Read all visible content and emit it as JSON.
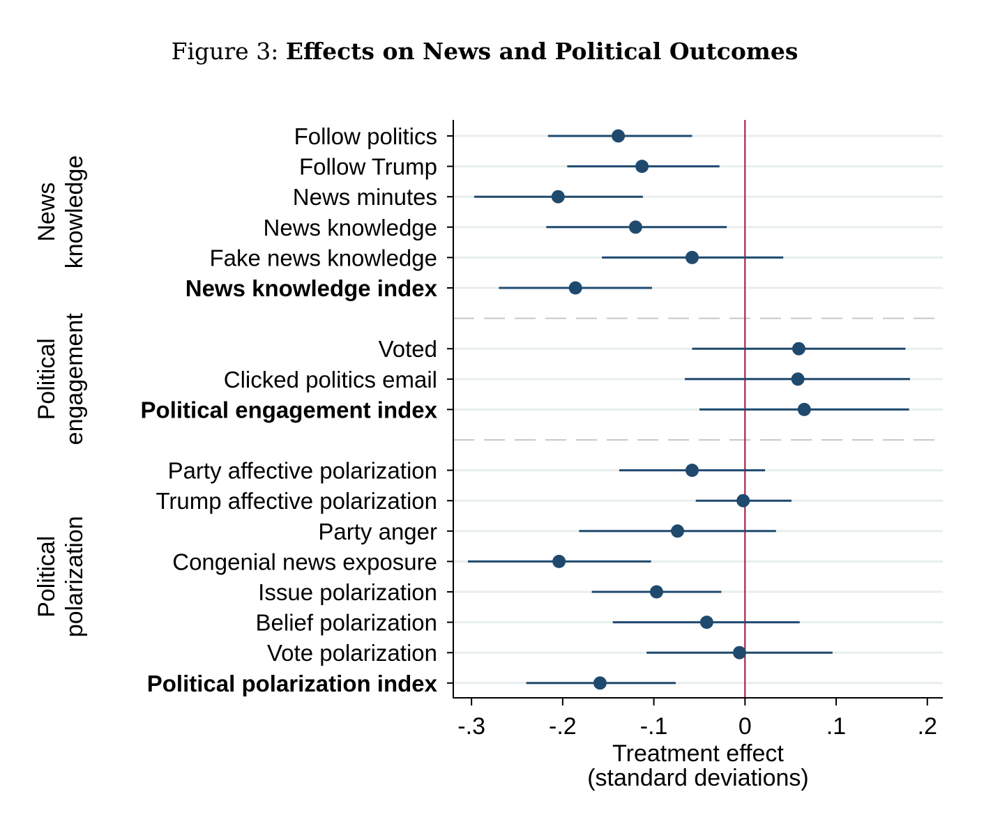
{
  "figure": {
    "prefix": "Figure 3:",
    "title": "Effects on News and Political Outcomes"
  },
  "chart_data": {
    "type": "scatter",
    "subtype": "coefficient-plot",
    "xlabel": "Treatment effect",
    "xlabel2": "(standard deviations)",
    "xlim": [
      -0.32,
      0.217
    ],
    "xticks": [
      -0.3,
      -0.2,
      -0.1,
      0,
      0.1,
      0.2
    ],
    "xtick_labels": [
      "-.3",
      "-.2",
      "-.1",
      "0",
      ".1",
      ".2"
    ],
    "reference_line": 0,
    "colors": {
      "point": "#1f4a6e",
      "reference": "#a3123f",
      "grid": "#e8eeee",
      "separator": "#c8c8c8"
    },
    "groups": [
      {
        "label_line1": "News",
        "label_line2": "knowledge",
        "items": [
          {
            "label": "Follow politics",
            "estimate": -0.139,
            "ci": [
              -0.216,
              -0.058
            ],
            "bold": false
          },
          {
            "label": "Follow Trump",
            "estimate": -0.113,
            "ci": [
              -0.195,
              -0.028
            ],
            "bold": false
          },
          {
            "label": "News minutes",
            "estimate": -0.205,
            "ci": [
              -0.297,
              -0.112
            ],
            "bold": false
          },
          {
            "label": "News knowledge",
            "estimate": -0.12,
            "ci": [
              -0.218,
              -0.02
            ],
            "bold": false
          },
          {
            "label": "Fake news knowledge",
            "estimate": -0.058,
            "ci": [
              -0.157,
              0.042
            ],
            "bold": false
          },
          {
            "label": "News knowledge index",
            "estimate": -0.186,
            "ci": [
              -0.27,
              -0.102
            ],
            "bold": true
          }
        ]
      },
      {
        "label_line1": "Political",
        "label_line2": "engagement",
        "items": [
          {
            "label": "Voted",
            "estimate": 0.059,
            "ci": [
              -0.058,
              0.176
            ],
            "bold": false
          },
          {
            "label": "Clicked politics email",
            "estimate": 0.058,
            "ci": [
              -0.066,
              0.181
            ],
            "bold": false
          },
          {
            "label": "Political engagement index",
            "estimate": 0.065,
            "ci": [
              -0.05,
              0.18
            ],
            "bold": true
          }
        ]
      },
      {
        "label_line1": "Political",
        "label_line2": "polarization",
        "items": [
          {
            "label": "Party affective polarization",
            "estimate": -0.058,
            "ci": [
              -0.138,
              0.022
            ],
            "bold": false
          },
          {
            "label": "Trump affective polarization",
            "estimate": -0.002,
            "ci": [
              -0.054,
              0.051
            ],
            "bold": false
          },
          {
            "label": "Party anger",
            "estimate": -0.074,
            "ci": [
              -0.182,
              0.034
            ],
            "bold": false
          },
          {
            "label": "Congenial news exposure",
            "estimate": -0.204,
            "ci": [
              -0.304,
              -0.103
            ],
            "bold": false
          },
          {
            "label": "Issue polarization",
            "estimate": -0.097,
            "ci": [
              -0.168,
              -0.026
            ],
            "bold": false
          },
          {
            "label": "Belief polarization",
            "estimate": -0.042,
            "ci": [
              -0.145,
              0.06
            ],
            "bold": false
          },
          {
            "label": "Vote polarization",
            "estimate": -0.006,
            "ci": [
              -0.108,
              0.096
            ],
            "bold": false
          },
          {
            "label": "Political polarization index",
            "estimate": -0.159,
            "ci": [
              -0.24,
              -0.076
            ],
            "bold": true
          }
        ]
      }
    ]
  }
}
